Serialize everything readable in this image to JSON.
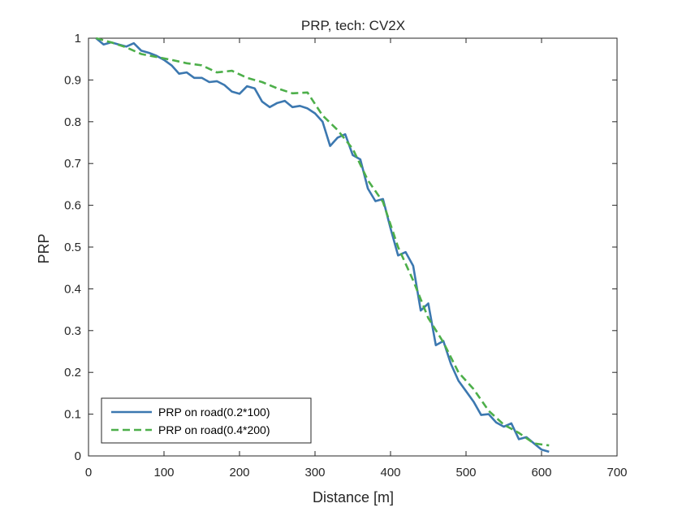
{
  "chart_data": {
    "type": "line",
    "title": "PRP, tech: CV2X",
    "xlabel": "Distance [m]",
    "ylabel": "PRP",
    "xlim": [
      0,
      700
    ],
    "ylim": [
      0,
      1
    ],
    "xticks": [
      0,
      100,
      200,
      300,
      400,
      500,
      600,
      700
    ],
    "yticks": [
      0,
      0.1,
      0.2,
      0.3,
      0.4,
      0.5,
      0.6,
      0.7,
      0.8,
      0.9,
      1
    ],
    "grid": false,
    "legend_position": "bottom-left",
    "series": [
      {
        "name": "PRP on road(0.2*100)",
        "color": "#3c78b0",
        "style": "solid",
        "x": [
          10,
          20,
          30,
          40,
          50,
          60,
          70,
          80,
          90,
          100,
          110,
          120,
          130,
          140,
          150,
          160,
          170,
          180,
          190,
          200,
          210,
          220,
          230,
          240,
          250,
          260,
          270,
          280,
          290,
          300,
          310,
          320,
          330,
          340,
          350,
          360,
          370,
          380,
          390,
          400,
          410,
          420,
          430,
          440,
          450,
          460,
          470,
          480,
          490,
          500,
          510,
          520,
          530,
          540,
          550,
          560,
          570,
          580,
          590,
          600,
          610
        ],
        "values": [
          1.0,
          0.985,
          0.99,
          0.985,
          0.98,
          0.988,
          0.97,
          0.965,
          0.958,
          0.948,
          0.935,
          0.915,
          0.918,
          0.905,
          0.905,
          0.895,
          0.897,
          0.888,
          0.872,
          0.867,
          0.885,
          0.88,
          0.848,
          0.835,
          0.845,
          0.85,
          0.835,
          0.838,
          0.832,
          0.82,
          0.8,
          0.742,
          0.762,
          0.77,
          0.72,
          0.71,
          0.64,
          0.61,
          0.615,
          0.545,
          0.48,
          0.488,
          0.455,
          0.348,
          0.365,
          0.265,
          0.275,
          0.22,
          0.18,
          0.155,
          0.13,
          0.098,
          0.1,
          0.08,
          0.07,
          0.078,
          0.04,
          0.045,
          0.03,
          0.015,
          0.01
        ]
      },
      {
        "name": "PRP on road(0.4*200)",
        "color": "#4daf4a",
        "style": "dashed",
        "x": [
          10,
          30,
          50,
          70,
          90,
          110,
          130,
          150,
          170,
          190,
          210,
          230,
          250,
          270,
          290,
          310,
          330,
          350,
          370,
          390,
          410,
          430,
          450,
          470,
          490,
          510,
          530,
          550,
          570,
          590,
          610
        ],
        "values": [
          1.0,
          0.99,
          0.978,
          0.962,
          0.955,
          0.948,
          0.94,
          0.935,
          0.918,
          0.922,
          0.905,
          0.895,
          0.88,
          0.868,
          0.87,
          0.815,
          0.78,
          0.735,
          0.66,
          0.608,
          0.5,
          0.42,
          0.33,
          0.272,
          0.2,
          0.16,
          0.108,
          0.075,
          0.055,
          0.03,
          0.025
        ]
      }
    ]
  }
}
